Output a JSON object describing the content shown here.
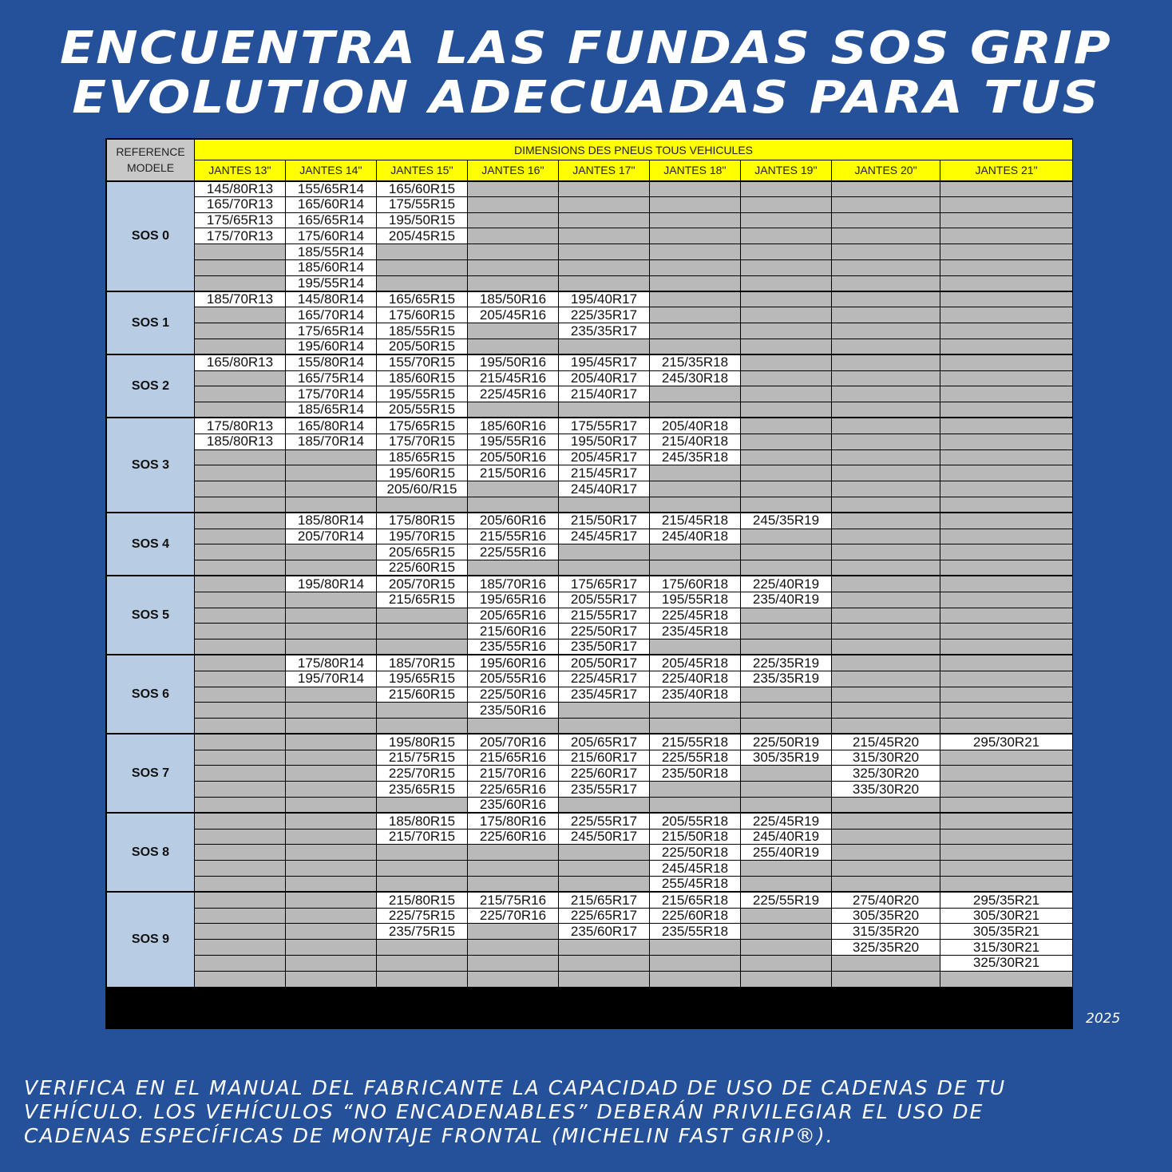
{
  "title": {
    "line1": "ENCUENTRA LAS FUNDAS SOS GRIP",
    "line2": "EVOLUTION ADECUADAS PARA TUS"
  },
  "table": {
    "ref_header": [
      "REFERENCE",
      "MODELE"
    ],
    "dims_header": "DIMENSIONS DES PNEUS TOUS VEHICULES",
    "columns": [
      "JANTES 13''",
      "JANTES 14''",
      "JANTES 15''",
      "JANTES 16''",
      "JANTES 17''",
      "JANTES 18''",
      "JANTES 19''",
      "JANTES 20\"",
      "JANTES 21\""
    ],
    "groups": [
      {
        "ref": "SOS 0",
        "rows": [
          [
            "145/80R13",
            "155/65R14",
            "165/60R15",
            "",
            "",
            "",
            "",
            "",
            ""
          ],
          [
            "165/70R13",
            "165/60R14",
            "175/55R15",
            "",
            "",
            "",
            "",
            "",
            ""
          ],
          [
            "175/65R13",
            "165/65R14",
            "195/50R15",
            "",
            "",
            "",
            "",
            "",
            ""
          ],
          [
            "175/70R13",
            "175/60R14",
            "205/45R15",
            "",
            "",
            "",
            "",
            "",
            ""
          ],
          [
            "",
            "185/55R14",
            "",
            "",
            "",
            "",
            "",
            "",
            ""
          ],
          [
            "",
            "185/60R14",
            "",
            "",
            "",
            "",
            "",
            "",
            ""
          ],
          [
            "",
            "195/55R14",
            "",
            "",
            "",
            "",
            "",
            "",
            ""
          ]
        ]
      },
      {
        "ref": "SOS 1",
        "rows": [
          [
            "185/70R13",
            "145/80R14",
            "165/65R15",
            "185/50R16",
            "195/40R17",
            "",
            "",
            "",
            ""
          ],
          [
            "",
            "165/70R14",
            "175/60R15",
            "205/45R16",
            "225/35R17",
            "",
            "",
            "",
            ""
          ],
          [
            "",
            "175/65R14",
            "185/55R15",
            "",
            "235/35R17",
            "",
            "",
            "",
            ""
          ],
          [
            "",
            "195/60R14",
            "205/50R15",
            "",
            "",
            "",
            "",
            "",
            ""
          ]
        ]
      },
      {
        "ref": "SOS 2",
        "rows": [
          [
            "165/80R13",
            "155/80R14",
            "155/70R15",
            "195/50R16",
            "195/45R17",
            "215/35R18",
            "",
            "",
            ""
          ],
          [
            "",
            "165/75R14",
            "185/60R15",
            "215/45R16",
            "205/40R17",
            "245/30R18",
            "",
            "",
            ""
          ],
          [
            "",
            "175/70R14",
            "195/55R15",
            "225/45R16",
            "215/40R17",
            "",
            "",
            "",
            ""
          ],
          [
            "",
            "185/65R14",
            "205/55R15",
            "",
            "",
            "",
            "",
            "",
            ""
          ]
        ]
      },
      {
        "ref": "SOS 3",
        "rows": [
          [
            "175/80R13",
            "165/80R14",
            "175/65R15",
            "185/60R16",
            "175/55R17",
            "205/40R18",
            "",
            "",
            ""
          ],
          [
            "185/80R13",
            "185/70R14",
            "175/70R15",
            "195/55R16",
            "195/50R17",
            "215/40R18",
            "",
            "",
            ""
          ],
          [
            "",
            "",
            "185/65R15",
            "205/50R16",
            "205/45R17",
            "245/35R18",
            "",
            "",
            ""
          ],
          [
            "",
            "",
            "195/60R15",
            "215/50R16",
            "215/45R17",
            "",
            "",
            "",
            ""
          ],
          [
            "",
            "",
            "205/60/R15",
            "",
            "245/40R17",
            "",
            "",
            "",
            ""
          ],
          [
            "",
            "",
            "",
            "",
            "",
            "",
            "",
            "",
            ""
          ]
        ]
      },
      {
        "ref": "SOS 4",
        "rows": [
          [
            "",
            "185/80R14",
            "175/80R15",
            "205/60R16",
            "215/50R17",
            "215/45R18",
            "245/35R19",
            "",
            ""
          ],
          [
            "",
            "205/70R14",
            "195/70R15",
            "215/55R16",
            "245/45R17",
            "245/40R18",
            "",
            "",
            ""
          ],
          [
            "",
            "",
            "205/65R15",
            "225/55R16",
            "",
            "",
            "",
            "",
            ""
          ],
          [
            "",
            "",
            "225/60R15",
            "",
            "",
            "",
            "",
            "",
            ""
          ]
        ]
      },
      {
        "ref": "SOS 5",
        "rows": [
          [
            "",
            "195/80R14",
            "205/70R15",
            "185/70R16",
            "175/65R17",
            "175/60R18",
            "225/40R19",
            "",
            ""
          ],
          [
            "",
            "",
            "215/65R15",
            "195/65R16",
            "205/55R17",
            "195/55R18",
            "235/40R19",
            "",
            ""
          ],
          [
            "",
            "",
            "",
            "205/65R16",
            "215/55R17",
            "225/45R18",
            "",
            "",
            ""
          ],
          [
            "",
            "",
            "",
            "215/60R16",
            "225/50R17",
            "235/45R18",
            "",
            "",
            ""
          ],
          [
            "",
            "",
            "",
            "235/55R16",
            "235/50R17",
            "",
            "",
            "",
            ""
          ]
        ]
      },
      {
        "ref": "SOS 6",
        "rows": [
          [
            "",
            "175/80R14",
            "185/70R15",
            "195/60R16",
            "205/50R17",
            "205/45R18",
            "225/35R19",
            "",
            ""
          ],
          [
            "",
            "195/70R14",
            "195/65R15",
            "205/55R16",
            "225/45R17",
            "225/40R18",
            "235/35R19",
            "",
            ""
          ],
          [
            "",
            "",
            "215/60R15",
            "225/50R16",
            "235/45R17",
            "235/40R18",
            "",
            "",
            ""
          ],
          [
            "",
            "",
            "",
            "235/50R16",
            "",
            "",
            "",
            "",
            ""
          ],
          [
            "",
            "",
            "",
            "",
            "",
            "",
            "",
            "",
            ""
          ]
        ]
      },
      {
        "ref": "SOS 7",
        "rows": [
          [
            "",
            "",
            "195/80R15",
            "205/70R16",
            "205/65R17",
            "215/55R18",
            "225/50R19",
            "215/45R20",
            "295/30R21"
          ],
          [
            "",
            "",
            "215/75R15",
            "215/65R16",
            "215/60R17",
            "225/55R18",
            "305/35R19",
            "315/30R20",
            ""
          ],
          [
            "",
            "",
            "225/70R15",
            "215/70R16",
            "225/60R17",
            "235/50R18",
            "",
            "325/30R20",
            ""
          ],
          [
            "",
            "",
            "235/65R15",
            "225/65R16",
            "235/55R17",
            "",
            "",
            "335/30R20",
            ""
          ],
          [
            "",
            "",
            "",
            "235/60R16",
            "",
            "",
            "",
            "",
            ""
          ]
        ]
      },
      {
        "ref": "SOS 8",
        "rows": [
          [
            "",
            "",
            "185/80R15",
            "175/80R16",
            "225/55R17",
            "205/55R18",
            "225/45R19",
            "",
            ""
          ],
          [
            "",
            "",
            "215/70R15",
            "225/60R16",
            "245/50R17",
            "215/50R18",
            "245/40R19",
            "",
            ""
          ],
          [
            "",
            "",
            "",
            "",
            "",
            "225/50R18",
            "255/40R19",
            "",
            ""
          ],
          [
            "",
            "",
            "",
            "",
            "",
            "245/45R18",
            "",
            "",
            ""
          ],
          [
            "",
            "",
            "",
            "",
            "",
            "255/45R18",
            "",
            "",
            ""
          ]
        ]
      },
      {
        "ref": "SOS 9",
        "rows": [
          [
            "",
            "",
            "215/80R15",
            "215/75R16",
            "215/65R17",
            "215/65R18",
            "225/55R19",
            "275/40R20",
            "295/35R21"
          ],
          [
            "",
            "",
            "225/75R15",
            "225/70R16",
            "225/65R17",
            "225/60R18",
            "",
            "305/35R20",
            "305/30R21"
          ],
          [
            "",
            "",
            "235/75R15",
            "",
            "235/60R17",
            "235/55R18",
            "",
            "315/35R20",
            "305/35R21"
          ],
          [
            "",
            "",
            "",
            "",
            "",
            "",
            "",
            "325/35R20",
            "315/30R21"
          ],
          [
            "",
            "",
            "",
            "",
            "",
            "",
            "",
            "",
            "325/30R21"
          ],
          [
            "",
            "",
            "",
            "",
            "",
            "",
            "",
            "",
            ""
          ]
        ]
      }
    ]
  },
  "year": "2025",
  "footer": {
    "line1": "VERIFICA EN EL MANUAL DEL FABRICANTE LA CAPACIDAD DE USO DE CADENAS DE TU",
    "line2": "VEHÍCULO. LOS VEHÍCULOS “NO ENCADENABLES” DEBERÁN PRIVILEGIAR EL USO DE",
    "line3": "CADENAS ESPECÍFICAS DE MONTAJE FRONTAL (MICHELIN FAST GRIP®)."
  },
  "colors": {
    "background": "#25519a",
    "header_yellow": "#ffff00",
    "ref_blue": "#b8cce4",
    "empty_cell": "#b9b9b9",
    "filled_cell": "#ffffff"
  }
}
